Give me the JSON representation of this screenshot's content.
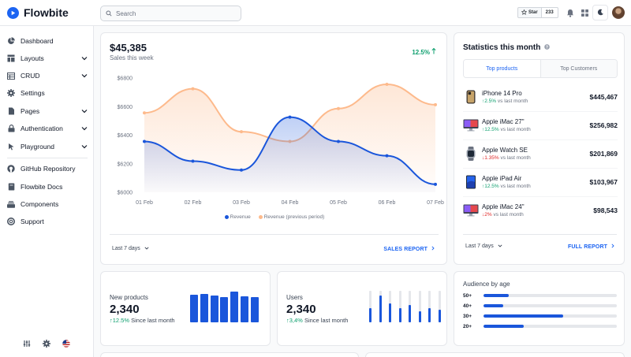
{
  "brand": {
    "name": "Flowbite"
  },
  "search": {
    "placeholder": "Search"
  },
  "header": {
    "star_label": "Star",
    "star_count": "233"
  },
  "sidebar": {
    "items": [
      {
        "label": "Dashboard",
        "icon": "pie-chart-icon",
        "chevron": false
      },
      {
        "label": "Layouts",
        "icon": "layout-icon",
        "chevron": true
      },
      {
        "label": "CRUD",
        "icon": "table-icon",
        "chevron": true
      },
      {
        "label": "Settings",
        "icon": "gear-icon",
        "chevron": false
      },
      {
        "label": "Pages",
        "icon": "document-icon",
        "chevron": true
      },
      {
        "label": "Authentication",
        "icon": "lock-icon",
        "chevron": true
      },
      {
        "label": "Playground",
        "icon": "cursor-icon",
        "chevron": true
      }
    ],
    "secondary": [
      {
        "label": "GitHub Repository",
        "icon": "github-icon"
      },
      {
        "label": "Flowbite Docs",
        "icon": "book-icon"
      },
      {
        "label": "Components",
        "icon": "collection-icon"
      },
      {
        "label": "Support",
        "icon": "lifebuoy-icon"
      }
    ]
  },
  "sales": {
    "value": "$45,385",
    "label": "Sales this week",
    "growth": "12.5%",
    "period": "Last 7 days",
    "report_link": "SALES REPORT"
  },
  "colors": {
    "revenue": "#1a56db",
    "previous": "#fdba8c",
    "up": "#0e9f6e",
    "down": "#e02424"
  },
  "chart_data": {
    "type": "area",
    "categories": [
      "01 Feb",
      "02 Feb",
      "03 Feb",
      "04 Feb",
      "05 Feb",
      "06 Feb",
      "07 Feb"
    ],
    "series": [
      {
        "name": "Revenue",
        "values": [
          6356,
          6218,
          6156,
          6526,
          6356,
          6256,
          6056
        ]
      },
      {
        "name": "Revenue (previous period)",
        "values": [
          6556,
          6725,
          6424,
          6356,
          6586,
          6756,
          6613
        ]
      }
    ],
    "y_ticks": [
      "$6800",
      "$6600",
      "$6400",
      "$6200",
      "$6000"
    ],
    "ylim": [
      6000,
      6800
    ],
    "legend": "bottom",
    "grid": false
  },
  "stats": {
    "title": "Statistics this month",
    "tabs": [
      "Top products",
      "Top Customers"
    ],
    "products": [
      {
        "name": "iPhone 14 Pro",
        "change": "2.5%",
        "dir": "up",
        "suffix": "vs last month",
        "price": "$445,467",
        "thumb": "iphone"
      },
      {
        "name": "Apple iMac 27\"",
        "change": "12.5%",
        "dir": "up",
        "suffix": "vs last month",
        "price": "$256,982",
        "thumb": "imac"
      },
      {
        "name": "Apple Watch SE",
        "change": "1.35%",
        "dir": "down",
        "suffix": "vs last month",
        "price": "$201,869",
        "thumb": "watch"
      },
      {
        "name": "Apple iPad Air",
        "change": "12.5%",
        "dir": "up",
        "suffix": "vs last month",
        "price": "$103,967",
        "thumb": "ipad"
      },
      {
        "name": "Apple iMac 24\"",
        "change": "2%",
        "dir": "down",
        "suffix": "vs last month",
        "price": "$98,543",
        "thumb": "imac"
      }
    ],
    "period": "Last 7 days",
    "report_link": "FULL REPORT"
  },
  "new_products": {
    "label": "New products",
    "value": "2,340",
    "change": "12.5%",
    "suffix": "Since last month",
    "bars": [
      0.88,
      0.9,
      0.85,
      0.8,
      0.97,
      0.82,
      0.8
    ]
  },
  "users": {
    "label": "Users",
    "value": "2,340",
    "change": "3,4%",
    "suffix": "Since last month",
    "bars": [
      0.45,
      0.85,
      0.6,
      0.45,
      0.55,
      0.35,
      0.45,
      0.4
    ]
  },
  "audience": {
    "title": "Audience by age",
    "rows": [
      {
        "label": "50+",
        "value": 0.19
      },
      {
        "label": "40+",
        "value": 0.15
      },
      {
        "label": "30+",
        "value": 0.6
      },
      {
        "label": "20+",
        "value": 0.3
      }
    ]
  }
}
